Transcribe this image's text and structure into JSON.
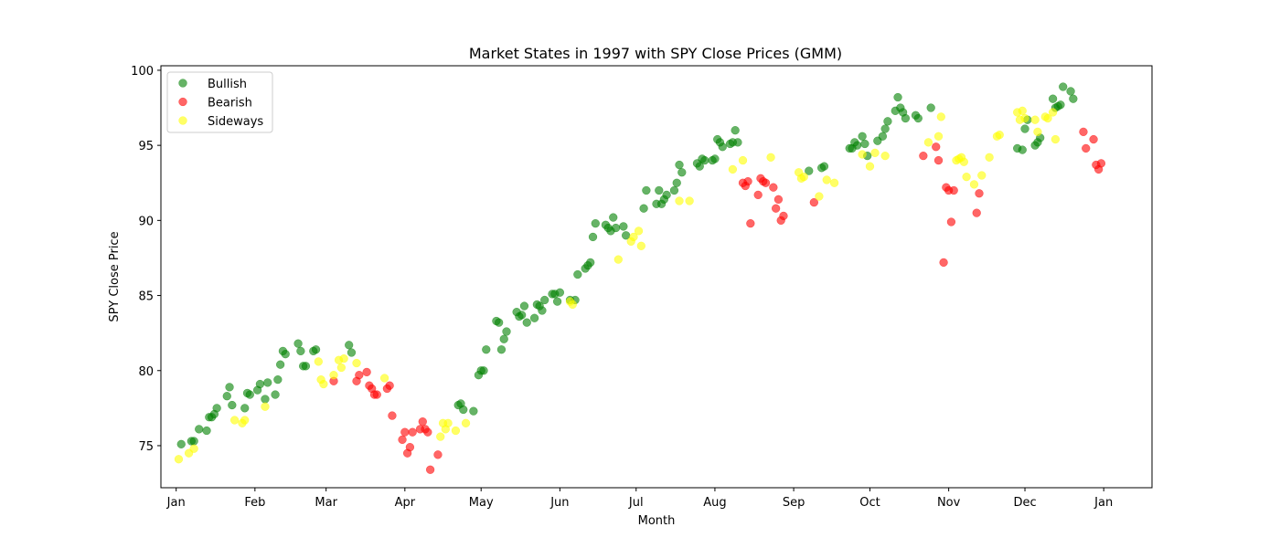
{
  "chart_data": {
    "type": "scatter",
    "title": "Market States in 1997 with SPY Close Prices (GMM)",
    "xlabel": "Month",
    "ylabel": "SPY Close Price",
    "x_unit": "day_of_year_1997",
    "xlim": [
      -6,
      384
    ],
    "ylim": [
      72.2,
      100.3
    ],
    "xticks": [
      {
        "label": "Jan",
        "value": 0
      },
      {
        "label": "Feb",
        "value": 31
      },
      {
        "label": "Mar",
        "value": 59
      },
      {
        "label": "Apr",
        "value": 90
      },
      {
        "label": "May",
        "value": 120
      },
      {
        "label": "Jun",
        "value": 151
      },
      {
        "label": "Jul",
        "value": 181
      },
      {
        "label": "Aug",
        "value": 212
      },
      {
        "label": "Sep",
        "value": 243
      },
      {
        "label": "Oct",
        "value": 273
      },
      {
        "label": "Nov",
        "value": 304
      },
      {
        "label": "Dec",
        "value": 334
      },
      {
        "label": "Jan",
        "value": 365
      }
    ],
    "yticks": [
      75,
      80,
      85,
      90,
      95,
      100
    ],
    "grid": false,
    "legend_position": "top-left",
    "series": [
      {
        "name": "Bullish",
        "color": "#008000",
        "points": [
          [
            2,
            75.1
          ],
          [
            6,
            75.3
          ],
          [
            7,
            75.3
          ],
          [
            9,
            76.1
          ],
          [
            12,
            76
          ],
          [
            13,
            76.9
          ],
          [
            14,
            76.9
          ],
          [
            15,
            77.1
          ],
          [
            16,
            77.5
          ],
          [
            20,
            78.3
          ],
          [
            21,
            78.9
          ],
          [
            22,
            77.7
          ],
          [
            27,
            77.5
          ],
          [
            28,
            78.5
          ],
          [
            29,
            78.4
          ],
          [
            32,
            78.7
          ],
          [
            33,
            79.1
          ],
          [
            35,
            78.1
          ],
          [
            36,
            79.2
          ],
          [
            39,
            78.4
          ],
          [
            40,
            79.4
          ],
          [
            41,
            80.4
          ],
          [
            42,
            81.3
          ],
          [
            43,
            81.1
          ],
          [
            48,
            81.8
          ],
          [
            49,
            81.3
          ],
          [
            50,
            80.3
          ],
          [
            51,
            80.3
          ],
          [
            54,
            81.3
          ],
          [
            55,
            81.4
          ],
          [
            68,
            81.7
          ],
          [
            69,
            81.2
          ],
          [
            111,
            77.7
          ],
          [
            112,
            77.8
          ],
          [
            113,
            77.4
          ],
          [
            117,
            77.3
          ],
          [
            119,
            79.7
          ],
          [
            120,
            80
          ],
          [
            121,
            80
          ],
          [
            122,
            81.4
          ],
          [
            126,
            83.3
          ],
          [
            127,
            83.2
          ],
          [
            128,
            81.4
          ],
          [
            129,
            82.1
          ],
          [
            130,
            82.6
          ],
          [
            134,
            83.9
          ],
          [
            135,
            83.6
          ],
          [
            136,
            83.7
          ],
          [
            137,
            84.3
          ],
          [
            138,
            83.2
          ],
          [
            141,
            83.5
          ],
          [
            142,
            84.4
          ],
          [
            143,
            84.3
          ],
          [
            144,
            84.0
          ],
          [
            145,
            84.7
          ],
          [
            148,
            85.1
          ],
          [
            149,
            85.1
          ],
          [
            150,
            84.6
          ],
          [
            151,
            85.2
          ],
          [
            155,
            84.7
          ],
          [
            157,
            84.7
          ],
          [
            158,
            86.4
          ],
          [
            161,
            86.8
          ],
          [
            162,
            87
          ],
          [
            163,
            87.2
          ],
          [
            164,
            88.9
          ],
          [
            165,
            89.8
          ],
          [
            169,
            89.7
          ],
          [
            170,
            89.5
          ],
          [
            171,
            89.3
          ],
          [
            172,
            90.2
          ],
          [
            173,
            89.5
          ],
          [
            176,
            89.6
          ],
          [
            177,
            89
          ],
          [
            184,
            90.8
          ],
          [
            185,
            92
          ],
          [
            189,
            91.1
          ],
          [
            190,
            92
          ],
          [
            191,
            91.1
          ],
          [
            192,
            91.4
          ],
          [
            193,
            91.7
          ],
          [
            196,
            92
          ],
          [
            197,
            92.5
          ],
          [
            198,
            93.7
          ],
          [
            199,
            93.2
          ],
          [
            205,
            93.8
          ],
          [
            206,
            93.6
          ],
          [
            207,
            94.1
          ],
          [
            208,
            94
          ],
          [
            211,
            94
          ],
          [
            212,
            94.1
          ],
          [
            213,
            95.4
          ],
          [
            214,
            95.2
          ],
          [
            215,
            94.9
          ],
          [
            218,
            95.1
          ],
          [
            219,
            95.2
          ],
          [
            220,
            96
          ],
          [
            221,
            95.2
          ],
          [
            249,
            93.3
          ],
          [
            254,
            93.5
          ],
          [
            255,
            93.6
          ],
          [
            265,
            94.8
          ],
          [
            266,
            94.8
          ],
          [
            267,
            95.2
          ],
          [
            268,
            95
          ],
          [
            270,
            95.6
          ],
          [
            271,
            95.1
          ],
          [
            272,
            94.3
          ],
          [
            276,
            95.3
          ],
          [
            278,
            95.6
          ],
          [
            279,
            96.1
          ],
          [
            280,
            96.6
          ],
          [
            283,
            97.3
          ],
          [
            284,
            98.2
          ],
          [
            285,
            97.5
          ],
          [
            286,
            97.2
          ],
          [
            287,
            96.8
          ],
          [
            291,
            97
          ],
          [
            292,
            96.8
          ],
          [
            297,
            97.5
          ],
          [
            331,
            94.8
          ],
          [
            333,
            94.7
          ],
          [
            334,
            96.1
          ],
          [
            335,
            96.7
          ],
          [
            338,
            95
          ],
          [
            339,
            95.2
          ],
          [
            340,
            95.5
          ],
          [
            345,
            98.1
          ],
          [
            346,
            97.5
          ],
          [
            347,
            97.6
          ],
          [
            348,
            97.7
          ],
          [
            349,
            98.9
          ],
          [
            352,
            98.6
          ],
          [
            353,
            98.1
          ]
        ]
      },
      {
        "name": "Bearish",
        "color": "#ff0000",
        "points": [
          [
            62,
            79.3
          ],
          [
            71,
            79.3
          ],
          [
            72,
            79.7
          ],
          [
            75,
            79.9
          ],
          [
            76,
            79
          ],
          [
            77,
            78.8
          ],
          [
            78,
            78.4
          ],
          [
            79,
            78.4
          ],
          [
            83,
            78.8
          ],
          [
            84,
            79
          ],
          [
            85,
            77
          ],
          [
            89,
            75.4
          ],
          [
            90,
            75.9
          ],
          [
            91,
            74.5
          ],
          [
            92,
            74.9
          ],
          [
            93,
            75.9
          ],
          [
            96,
            76.1
          ],
          [
            97,
            76.6
          ],
          [
            98,
            76.1
          ],
          [
            99,
            75.9
          ],
          [
            100,
            73.4
          ],
          [
            103,
            74.4
          ],
          [
            223,
            92.5
          ],
          [
            224,
            92.3
          ],
          [
            225,
            92.6
          ],
          [
            226,
            89.8
          ],
          [
            229,
            91.7
          ],
          [
            230,
            92.8
          ],
          [
            231,
            92.6
          ],
          [
            232,
            92.5
          ],
          [
            235,
            92.2
          ],
          [
            236,
            90.8
          ],
          [
            237,
            91.4
          ],
          [
            238,
            90
          ],
          [
            239,
            90.3
          ],
          [
            251,
            91.2
          ],
          [
            294,
            94.3
          ],
          [
            299,
            94.9
          ],
          [
            300,
            94
          ],
          [
            302,
            87.2
          ],
          [
            303,
            92.2
          ],
          [
            304,
            92
          ],
          [
            305,
            89.9
          ],
          [
            306,
            92
          ],
          [
            315,
            90.5
          ],
          [
            316,
            91.8
          ],
          [
            357,
            95.9
          ],
          [
            358,
            94.8
          ],
          [
            361,
            95.4
          ],
          [
            362,
            93.7
          ],
          [
            363,
            93.4
          ],
          [
            364,
            93.8
          ]
        ]
      },
      {
        "name": "Sideways",
        "color": "#ffff00",
        "points": [
          [
            1,
            74.1
          ],
          [
            5,
            74.5
          ],
          [
            7,
            74.8
          ],
          [
            23,
            76.7
          ],
          [
            26,
            76.5
          ],
          [
            27,
            76.7
          ],
          [
            35,
            77.6
          ],
          [
            56,
            80.6
          ],
          [
            57,
            79.4
          ],
          [
            58,
            79.1
          ],
          [
            62,
            79.7
          ],
          [
            64,
            80.7
          ],
          [
            65,
            80.2
          ],
          [
            66,
            80.8
          ],
          [
            71,
            80.5
          ],
          [
            82,
            79.5
          ],
          [
            104,
            75.6
          ],
          [
            105,
            76.5
          ],
          [
            106,
            76.1
          ],
          [
            107,
            76.5
          ],
          [
            110,
            76
          ],
          [
            114,
            76.5
          ],
          [
            155,
            84.6
          ],
          [
            156,
            84.4
          ],
          [
            174,
            87.4
          ],
          [
            179,
            88.6
          ],
          [
            180,
            88.9
          ],
          [
            182,
            89.3
          ],
          [
            183,
            88.3
          ],
          [
            198,
            91.3
          ],
          [
            202,
            91.3
          ],
          [
            219,
            93.4
          ],
          [
            223,
            94
          ],
          [
            234,
            94.2
          ],
          [
            245,
            93.2
          ],
          [
            246,
            92.8
          ],
          [
            247,
            92.9
          ],
          [
            253,
            91.6
          ],
          [
            256,
            92.7
          ],
          [
            259,
            92.5
          ],
          [
            270,
            94.4
          ],
          [
            273,
            93.6
          ],
          [
            275,
            94.5
          ],
          [
            279,
            94.3
          ],
          [
            296,
            95.2
          ],
          [
            300,
            95.6
          ],
          [
            301,
            96.9
          ],
          [
            307,
            94
          ],
          [
            308,
            94.1
          ],
          [
            309,
            94.2
          ],
          [
            310,
            93.9
          ],
          [
            311,
            92.9
          ],
          [
            314,
            92.4
          ],
          [
            317,
            93
          ],
          [
            320,
            94.2
          ],
          [
            323,
            95.6
          ],
          [
            324,
            95.7
          ],
          [
            331,
            97.2
          ],
          [
            332,
            96.7
          ],
          [
            333,
            97.3
          ],
          [
            334,
            96.8
          ],
          [
            338,
            96.7
          ],
          [
            339,
            95.9
          ],
          [
            342,
            96.9
          ],
          [
            343,
            96.8
          ],
          [
            345,
            97.2
          ],
          [
            346,
            95.4
          ]
        ]
      }
    ]
  }
}
